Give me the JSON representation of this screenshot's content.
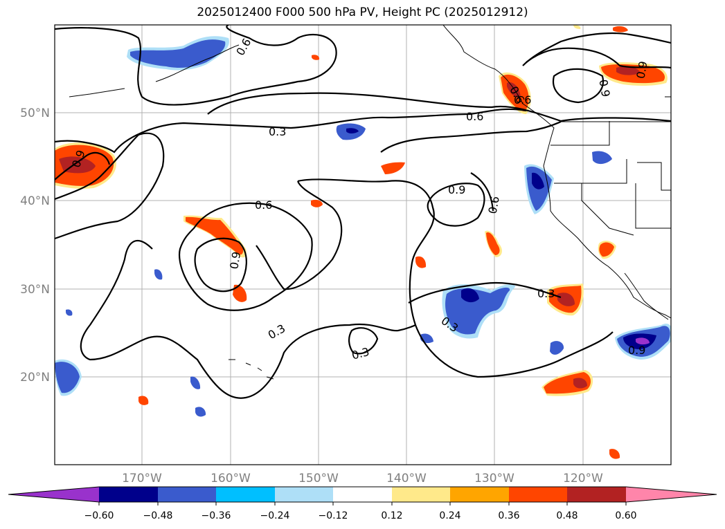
{
  "title": "2025012400 F000 500 hPa PV, Height PC (2025012912)",
  "colors": {
    "c_neg60": "#9932cc",
    "c_neg48": "#00008b",
    "c_neg36": "#3a5bcd",
    "c_neg24": "#00bfff",
    "c_neg12": "#aedff7",
    "c_zero": "#ffffff",
    "c_pos12": "#ffe98a",
    "c_pos24": "#ffa500",
    "c_pos36": "#ff4500",
    "c_pos48": "#b22222",
    "c_pos60": "#ff85aa",
    "grid": "#b0b0b0",
    "coast": "#000000"
  },
  "map": {
    "lat_labels": [
      "50°N",
      "40°N",
      "30°N",
      "20°N"
    ],
    "lon_labels": [
      "170°W",
      "160°W",
      "150°W",
      "140°W",
      "130°W",
      "120°W"
    ]
  },
  "contour_labels": [
    "0.3",
    "0.6",
    "0.6",
    "0.9",
    "0.6",
    "0.3",
    "0.3",
    "0.3",
    "0.9",
    "0.9",
    "0.6",
    "0.6",
    "0.9",
    "0.9",
    "0.6",
    "0.9",
    "0.3"
  ],
  "colorbar": {
    "ticks": [
      "−0.60",
      "−0.48",
      "−0.36",
      "−0.24",
      "−0.12",
      "0.12",
      "0.24",
      "0.36",
      "0.48",
      "0.60"
    ]
  }
}
